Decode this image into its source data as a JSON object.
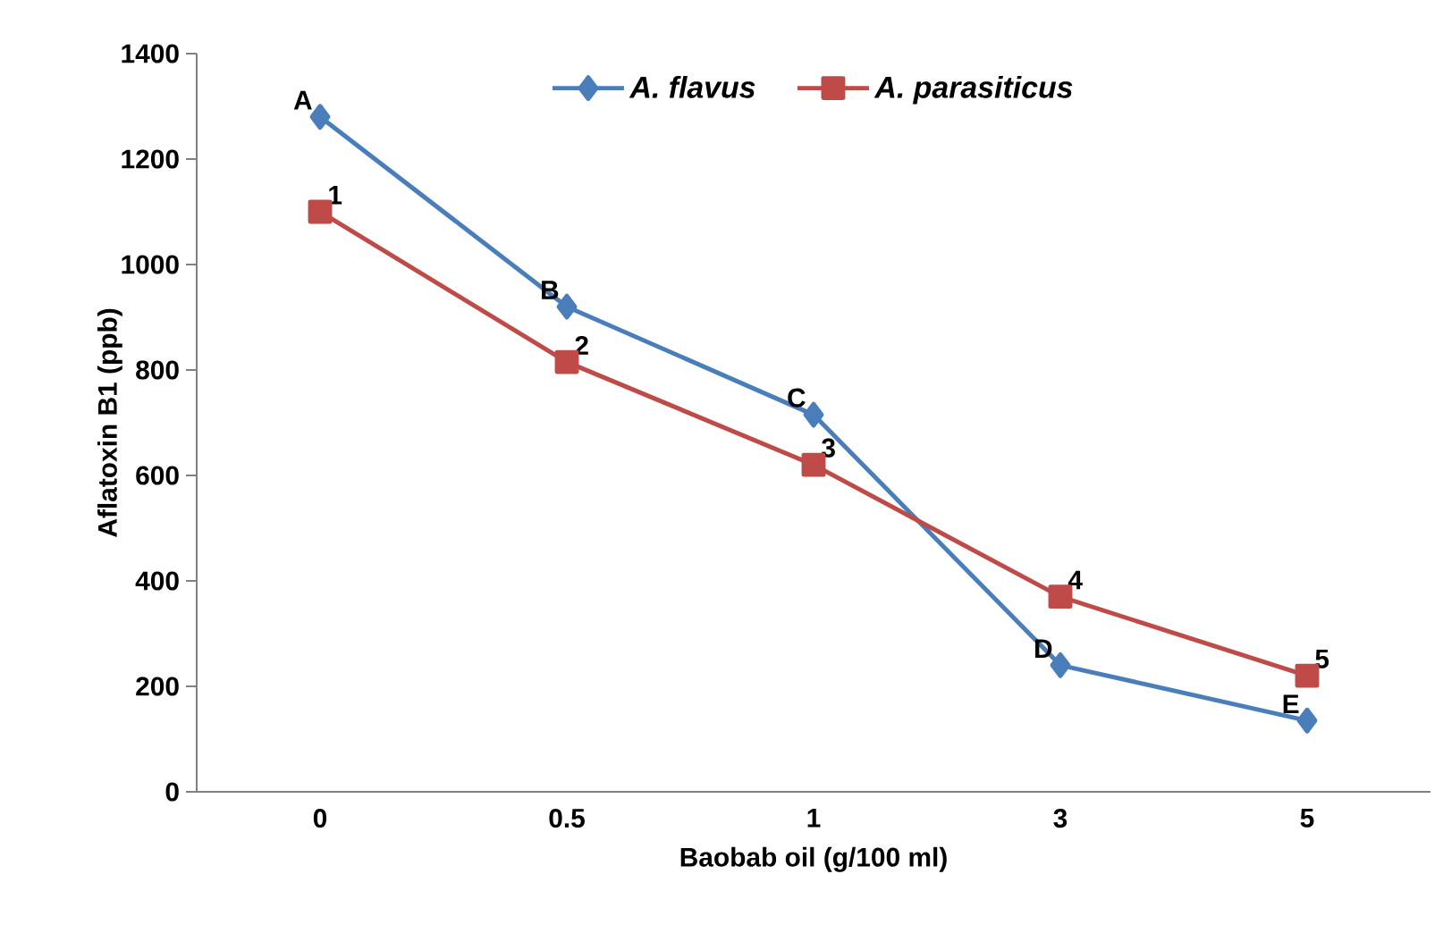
{
  "chart_data": {
    "type": "line",
    "xlabel": "Baobab oil (g/100 ml)",
    "ylabel": "Aflatoxin B1 (ppb)",
    "categories": [
      "0",
      "0.5",
      "1",
      "3",
      "5"
    ],
    "series": [
      {
        "name": "A. flavus",
        "color": "#4a7ebb",
        "values": [
          1280,
          920,
          715,
          240,
          135
        ],
        "marker": "diamond"
      },
      {
        "name": "A. parasiticus",
        "color": "#be4b48",
        "values": [
          1100,
          815,
          620,
          370,
          220
        ],
        "marker": "square"
      }
    ],
    "ylim": [
      0,
      1400
    ],
    "yticks": [
      0,
      200,
      400,
      600,
      800,
      1000,
      1200,
      1400
    ],
    "grid": false,
    "legend": "top",
    "annotations": [
      {
        "text": "A",
        "x": "0",
        "y": 1280
      },
      {
        "text": "B",
        "x": "0.5",
        "y": 920
      },
      {
        "text": "C",
        "x": "1",
        "y": 715
      },
      {
        "text": "D",
        "x": "3",
        "y": 240
      },
      {
        "text": "E",
        "x": "5",
        "y": 135
      },
      {
        "text": "1",
        "x": "0",
        "y": 1100
      },
      {
        "text": "2",
        "x": "0.5",
        "y": 815
      },
      {
        "text": "3",
        "x": "1",
        "y": 620
      },
      {
        "text": "4",
        "x": "3",
        "y": 370
      },
      {
        "text": "5",
        "x": "5",
        "y": 220
      }
    ]
  }
}
